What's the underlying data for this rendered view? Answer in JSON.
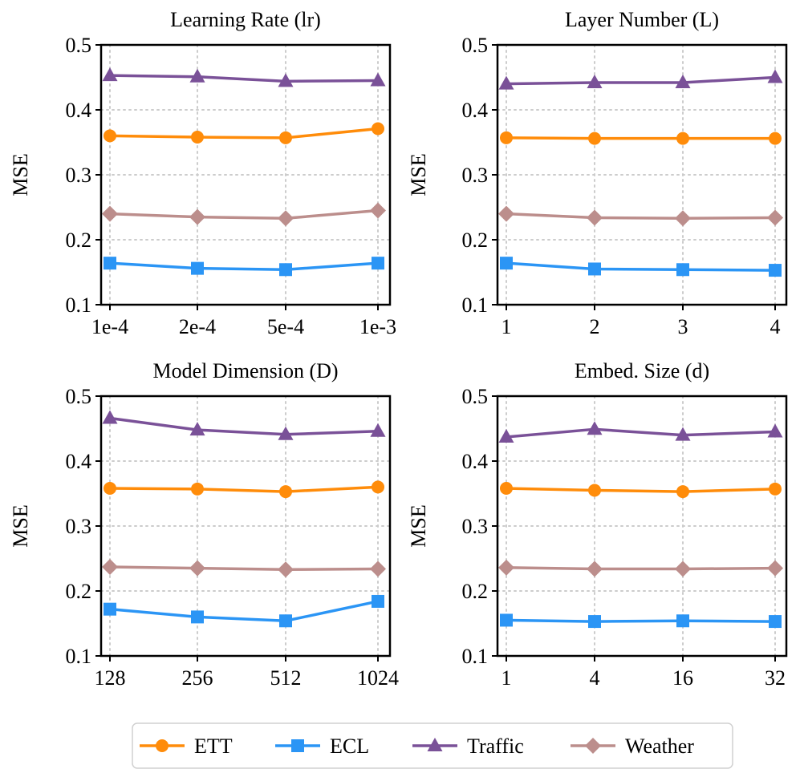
{
  "chart_data": [
    {
      "type": "line",
      "title": "Learning Rate (lr)",
      "xlabel": "",
      "ylabel": "MSE",
      "categories": [
        "1e-4",
        "2e-4",
        "5e-4",
        "1e-3"
      ],
      "ylim": [
        0.1,
        0.5
      ],
      "yticks": [
        "0.1",
        "0.2",
        "0.3",
        "0.4",
        "0.5"
      ],
      "grid": true,
      "series": [
        {
          "name": "ETT",
          "values": [
            0.36,
            0.358,
            0.357,
            0.371
          ]
        },
        {
          "name": "ECL",
          "values": [
            0.164,
            0.156,
            0.154,
            0.164
          ]
        },
        {
          "name": "Traffic",
          "values": [
            0.453,
            0.451,
            0.444,
            0.445
          ]
        },
        {
          "name": "Weather",
          "values": [
            0.24,
            0.235,
            0.233,
            0.245
          ]
        }
      ]
    },
    {
      "type": "line",
      "title": "Layer Number (L)",
      "xlabel": "",
      "ylabel": "MSE",
      "categories": [
        "1",
        "2",
        "3",
        "4"
      ],
      "ylim": [
        0.1,
        0.5
      ],
      "yticks": [
        "0.1",
        "0.2",
        "0.3",
        "0.4",
        "0.5"
      ],
      "grid": true,
      "series": [
        {
          "name": "ETT",
          "values": [
            0.357,
            0.356,
            0.356,
            0.356
          ]
        },
        {
          "name": "ECL",
          "values": [
            0.164,
            0.155,
            0.154,
            0.153
          ]
        },
        {
          "name": "Traffic",
          "values": [
            0.44,
            0.442,
            0.442,
            0.45
          ]
        },
        {
          "name": "Weather",
          "values": [
            0.24,
            0.234,
            0.233,
            0.234
          ]
        }
      ]
    },
    {
      "type": "line",
      "title": "Model Dimension (D)",
      "xlabel": "",
      "ylabel": "MSE",
      "categories": [
        "128",
        "256",
        "512",
        "1024"
      ],
      "ylim": [
        0.1,
        0.5
      ],
      "yticks": [
        "0.1",
        "0.2",
        "0.3",
        "0.4",
        "0.5"
      ],
      "grid": true,
      "series": [
        {
          "name": "ETT",
          "values": [
            0.358,
            0.357,
            0.353,
            0.36
          ]
        },
        {
          "name": "ECL",
          "values": [
            0.172,
            0.16,
            0.154,
            0.184
          ]
        },
        {
          "name": "Traffic",
          "values": [
            0.466,
            0.448,
            0.441,
            0.446
          ]
        },
        {
          "name": "Weather",
          "values": [
            0.237,
            0.235,
            0.233,
            0.234
          ]
        }
      ]
    },
    {
      "type": "line",
      "title": "Embed. Size (d)",
      "xlabel": "",
      "ylabel": "MSE",
      "categories": [
        "1",
        "4",
        "16",
        "32"
      ],
      "ylim": [
        0.1,
        0.5
      ],
      "yticks": [
        "0.1",
        "0.2",
        "0.3",
        "0.4",
        "0.5"
      ],
      "grid": true,
      "series": [
        {
          "name": "ETT",
          "values": [
            0.358,
            0.355,
            0.353,
            0.357
          ]
        },
        {
          "name": "ECL",
          "values": [
            0.155,
            0.153,
            0.154,
            0.153
          ]
        },
        {
          "name": "Traffic",
          "values": [
            0.437,
            0.449,
            0.44,
            0.445
          ]
        },
        {
          "name": "Weather",
          "values": [
            0.236,
            0.234,
            0.234,
            0.235
          ]
        }
      ]
    }
  ],
  "legend": {
    "placement": "bottom-center",
    "entries": [
      {
        "name": "ETT",
        "color": "#FF8C0A",
        "marker": "circle"
      },
      {
        "name": "ECL",
        "color": "#2B95F5",
        "marker": "square"
      },
      {
        "name": "Traffic",
        "color": "#7A5198",
        "marker": "triangle"
      },
      {
        "name": "Weather",
        "color": "#BC8E8C",
        "marker": "diamond"
      }
    ]
  },
  "colors": {
    "ETT": "#FF8C0A",
    "ECL": "#2B95F5",
    "Traffic": "#7A5198",
    "Weather": "#BC8E8C",
    "grid": "#CCCCCC",
    "axis": "#000000"
  }
}
